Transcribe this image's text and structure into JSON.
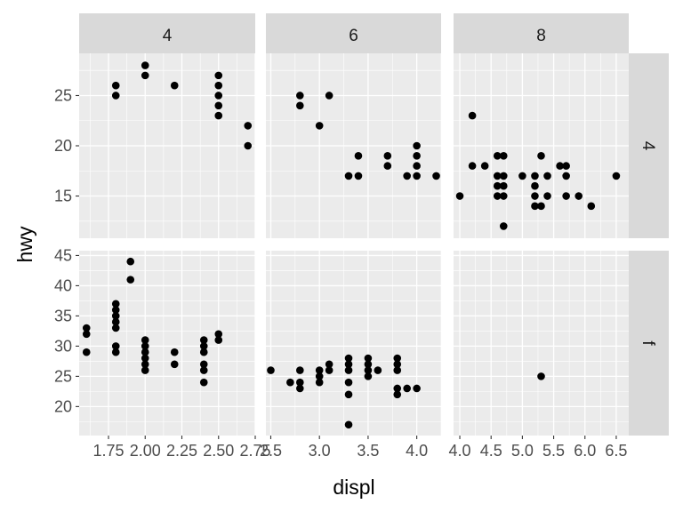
{
  "chart_data": {
    "type": "scatter",
    "xlabel": "displ",
    "ylabel": "hwy",
    "facet_cols": [
      "4",
      "6",
      "8"
    ],
    "facet_rows": [
      "4",
      "f"
    ],
    "scales": "free",
    "grid": true,
    "colors": {
      "panel": "#EBEBEB",
      "strip": "#D9D9D9",
      "point": "#000000",
      "grid": "#FFFFFF"
    },
    "panels": [
      {
        "col": "4",
        "row": "4",
        "xlim": [
          1.55,
          2.75
        ],
        "ylim": [
          10.8,
          29.2
        ],
        "xticks": [
          1.75,
          2.0,
          2.25,
          2.5,
          2.75
        ],
        "xtick_labels": [
          "1.75",
          "2.00",
          "2.25",
          "2.50",
          "2.75"
        ],
        "yticks": [
          15,
          20,
          25
        ],
        "ytick_labels": [
          "15",
          "20",
          "25"
        ],
        "points": [
          [
            1.8,
            26
          ],
          [
            1.8,
            25
          ],
          [
            2.0,
            28
          ],
          [
            2.0,
            27
          ],
          [
            2.2,
            26
          ],
          [
            2.5,
            27
          ],
          [
            2.5,
            26
          ],
          [
            2.5,
            25
          ],
          [
            2.5,
            24
          ],
          [
            2.5,
            23
          ],
          [
            2.7,
            22
          ],
          [
            2.7,
            20
          ]
        ]
      },
      {
        "col": "6",
        "row": "4",
        "xlim": [
          2.45,
          4.25
        ],
        "ylim": [
          10.8,
          29.2
        ],
        "xticks": [
          2.5,
          3.0,
          3.5,
          4.0
        ],
        "xtick_labels": [
          "2.5",
          "3.0",
          "3.5",
          "4.0"
        ],
        "yticks": [
          15,
          20,
          25
        ],
        "ytick_labels": [
          "15",
          "20",
          "25"
        ],
        "points": [
          [
            2.8,
            25
          ],
          [
            2.8,
            24
          ],
          [
            3.1,
            25
          ],
          [
            3.0,
            22
          ],
          [
            3.3,
            17
          ],
          [
            3.4,
            19
          ],
          [
            3.4,
            17
          ],
          [
            3.7,
            19
          ],
          [
            3.7,
            18
          ],
          [
            3.9,
            17
          ],
          [
            4.0,
            20
          ],
          [
            4.0,
            19
          ],
          [
            4.0,
            18
          ],
          [
            4.0,
            17
          ],
          [
            4.2,
            17
          ]
        ]
      },
      {
        "col": "8",
        "row": "4",
        "xlim": [
          3.9,
          6.7
        ],
        "ylim": [
          10.8,
          29.2
        ],
        "xticks": [
          4.0,
          4.5,
          5.0,
          5.5,
          6.0,
          6.5
        ],
        "xtick_labels": [
          "4.0",
          "4.5",
          "5.0",
          "5.5",
          "6.0",
          "6.5"
        ],
        "yticks": [
          15,
          20,
          25
        ],
        "ytick_labels": [
          "15",
          "20",
          "25"
        ],
        "points": [
          [
            4.0,
            15
          ],
          [
            4.2,
            23
          ],
          [
            4.2,
            18
          ],
          [
            4.4,
            18
          ],
          [
            4.6,
            19
          ],
          [
            4.6,
            17
          ],
          [
            4.6,
            16
          ],
          [
            4.6,
            15
          ],
          [
            4.7,
            19
          ],
          [
            4.7,
            17
          ],
          [
            4.7,
            16
          ],
          [
            4.7,
            15
          ],
          [
            4.7,
            12
          ],
          [
            5.0,
            17
          ],
          [
            5.2,
            17
          ],
          [
            5.2,
            16
          ],
          [
            5.2,
            15
          ],
          [
            5.2,
            14
          ],
          [
            5.3,
            19
          ],
          [
            5.3,
            14
          ],
          [
            5.4,
            17
          ],
          [
            5.4,
            15
          ],
          [
            5.6,
            18
          ],
          [
            5.7,
            18
          ],
          [
            5.7,
            17
          ],
          [
            5.7,
            15
          ],
          [
            5.9,
            15
          ],
          [
            6.1,
            14
          ],
          [
            6.5,
            17
          ]
        ]
      },
      {
        "col": "4",
        "row": "f",
        "xlim": [
          1.55,
          2.75
        ],
        "ylim": [
          15.2,
          45.8
        ],
        "xticks": [
          1.75,
          2.0,
          2.25,
          2.5,
          2.75
        ],
        "xtick_labels": [
          "1.75",
          "2.00",
          "2.25",
          "2.50",
          "2.75"
        ],
        "yticks": [
          20,
          25,
          30,
          35,
          40,
          45
        ],
        "ytick_labels": [
          "20",
          "25",
          "30",
          "35",
          "40",
          "45"
        ],
        "points": [
          [
            1.6,
            33
          ],
          [
            1.6,
            32
          ],
          [
            1.6,
            29
          ],
          [
            1.8,
            37
          ],
          [
            1.8,
            36
          ],
          [
            1.8,
            35
          ],
          [
            1.8,
            34
          ],
          [
            1.8,
            33
          ],
          [
            1.8,
            30
          ],
          [
            1.8,
            29
          ],
          [
            1.9,
            44
          ],
          [
            1.9,
            41
          ],
          [
            2.0,
            31
          ],
          [
            2.0,
            30
          ],
          [
            2.0,
            29
          ],
          [
            2.0,
            28
          ],
          [
            2.0,
            27
          ],
          [
            2.0,
            26
          ],
          [
            2.2,
            29
          ],
          [
            2.2,
            27
          ],
          [
            2.4,
            31
          ],
          [
            2.4,
            30
          ],
          [
            2.4,
            29
          ],
          [
            2.4,
            27
          ],
          [
            2.4,
            26
          ],
          [
            2.4,
            24
          ],
          [
            2.5,
            32
          ],
          [
            2.5,
            31
          ]
        ]
      },
      {
        "col": "6",
        "row": "f",
        "xlim": [
          2.45,
          4.25
        ],
        "ylim": [
          15.2,
          45.8
        ],
        "xticks": [
          2.5,
          3.0,
          3.5,
          4.0
        ],
        "xtick_labels": [
          "2.5",
          "3.0",
          "3.5",
          "4.0"
        ],
        "yticks": [
          20,
          25,
          30,
          35,
          40,
          45
        ],
        "ytick_labels": [
          "20",
          "25",
          "30",
          "35",
          "40",
          "45"
        ],
        "points": [
          [
            2.5,
            26
          ],
          [
            2.7,
            24
          ],
          [
            2.8,
            26
          ],
          [
            2.8,
            24
          ],
          [
            2.8,
            23
          ],
          [
            3.0,
            26
          ],
          [
            3.0,
            25
          ],
          [
            3.0,
            24
          ],
          [
            3.1,
            27
          ],
          [
            3.1,
            26
          ],
          [
            3.3,
            28
          ],
          [
            3.3,
            27
          ],
          [
            3.3,
            26
          ],
          [
            3.3,
            24
          ],
          [
            3.3,
            22
          ],
          [
            3.3,
            17
          ],
          [
            3.5,
            28
          ],
          [
            3.5,
            27
          ],
          [
            3.5,
            26
          ],
          [
            3.5,
            25
          ],
          [
            3.6,
            26
          ],
          [
            3.8,
            28
          ],
          [
            3.8,
            27
          ],
          [
            3.8,
            26
          ],
          [
            3.8,
            23
          ],
          [
            3.8,
            22
          ],
          [
            3.9,
            23
          ],
          [
            4.0,
            23
          ]
        ]
      },
      {
        "col": "8",
        "row": "f",
        "xlim": [
          3.9,
          6.7
        ],
        "ylim": [
          15.2,
          45.8
        ],
        "xticks": [
          4.0,
          4.5,
          5.0,
          5.5,
          6.0,
          6.5
        ],
        "xtick_labels": [
          "4.0",
          "4.5",
          "5.0",
          "5.5",
          "6.0",
          "6.5"
        ],
        "yticks": [
          20,
          25,
          30,
          35,
          40,
          45
        ],
        "ytick_labels": [
          "20",
          "25",
          "30",
          "35",
          "40",
          "45"
        ],
        "points": [
          [
            5.3,
            25
          ]
        ]
      }
    ]
  }
}
